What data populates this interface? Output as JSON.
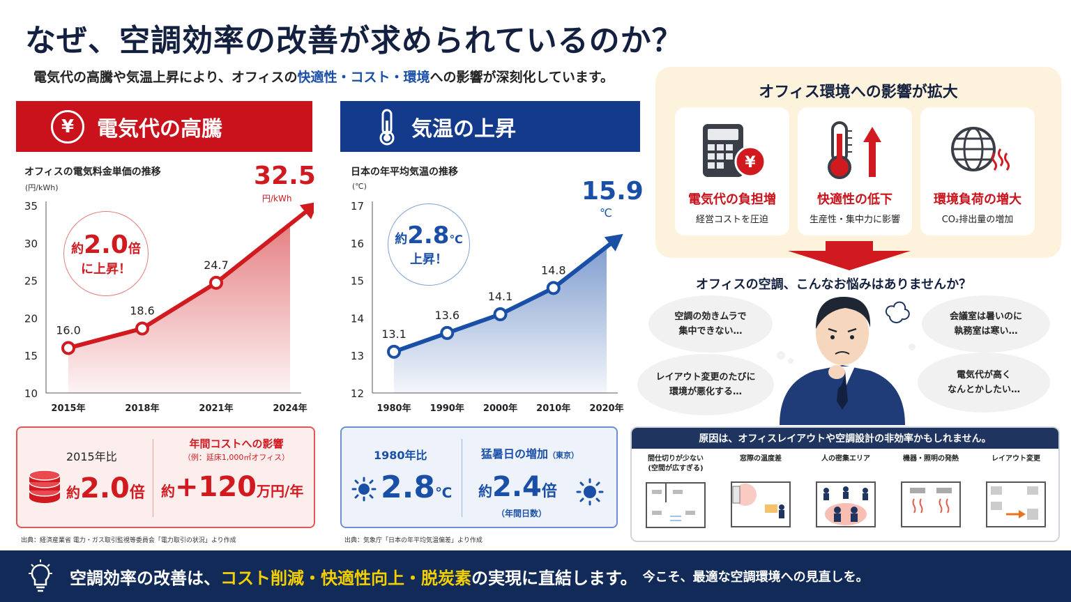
{
  "title": "なぜ、空調効率の改善が求められているのか？",
  "subtitle": {
    "pre": "電気代の高騰や気温上昇により、オフィスの",
    "highlight": "快適性・コスト・環境",
    "post": "への影響が深刻化しています。"
  },
  "left_panel": {
    "header": "電気代の高騰",
    "header_icon": "yen-icon",
    "chart_title": "オフィスの電気料金単価の推移",
    "unit": "(円/kWh)",
    "final_value": "32.5",
    "final_unit": "円/kWh",
    "badge_line1_pre": "約",
    "badge_value": "2.0",
    "badge_line1_post": "倍",
    "badge_line2": "に上昇！",
    "stat_left_label": "2015年比",
    "stat_left_pre": "約",
    "stat_left_value": "2.0",
    "stat_left_suffix": "倍",
    "stat_right_title": "年間コストへの影響",
    "stat_right_note": "（例：延床1,000㎡オフィス）",
    "stat_right_pre": "約",
    "stat_right_value": "+120",
    "stat_right_suffix": "万円/年",
    "source": "出典：経済産業省 電力・ガス取引監視等委員会「電力取引の状況」より作成",
    "accent": "#c9121b"
  },
  "mid_panel": {
    "header": "気温の上昇",
    "header_icon": "thermometer-icon",
    "chart_title": "日本の年平均気温の推移",
    "unit": "(℃)",
    "final_value": "15.9",
    "final_unit": "℃",
    "badge_line1_pre": "約",
    "badge_value": "2.8",
    "badge_line1_post": "℃",
    "badge_line2": "上昇！",
    "stat_left_label": "1980年比",
    "stat_left_value": "2.8",
    "stat_left_suffix": "℃",
    "stat_right_title": "猛暑日の増加",
    "stat_right_title_note": "（東京）",
    "stat_right_pre": "約",
    "stat_right_value": "2.4",
    "stat_right_suffix": "倍",
    "stat_right_note": "（年間日数）",
    "source": "出典：気象庁「日本の年平均気温偏差」より作成",
    "accent": "#1a4fa8"
  },
  "chart_data": [
    {
      "type": "line",
      "title": "オフィスの電気料金単価の推移",
      "ylabel": "(円/kWh)",
      "categories": [
        "2015年",
        "2018年",
        "2021年",
        "2024年"
      ],
      "x": [
        2015,
        2018,
        2021,
        2024
      ],
      "values": [
        16.0,
        18.6,
        24.7,
        32.5
      ],
      "value_labels": [
        "16.0",
        "18.6",
        "24.7",
        "32.5"
      ],
      "ylim": [
        10,
        35
      ],
      "yticks": [
        10,
        15,
        20,
        25,
        30,
        35
      ],
      "grid": false,
      "color": "#d11a1f"
    },
    {
      "type": "line",
      "title": "日本の年平均気温の推移",
      "ylabel": "(℃)",
      "categories": [
        "1980年",
        "1990年",
        "2000年",
        "2010年",
        "2020年"
      ],
      "x": [
        1980,
        1990,
        2000,
        2010,
        2020
      ],
      "values": [
        13.1,
        13.6,
        14.1,
        14.8,
        15.9
      ],
      "value_labels": [
        "13.1",
        "13.6",
        "14.1",
        "14.8",
        "15.9"
      ],
      "ylim": [
        12,
        17
      ],
      "yticks": [
        12,
        13,
        14,
        15,
        16,
        17
      ],
      "grid": false,
      "color": "#1a4fa8"
    }
  ],
  "impact": {
    "title": "オフィス環境への影響が拡大",
    "cards": [
      {
        "icon": "calculator-yen-icon",
        "title": "電気代の負担増",
        "sub": "経営コストを圧迫"
      },
      {
        "icon": "thermometer-up-icon",
        "title": "快適性の低下",
        "sub": "生産性・集中力に影響"
      },
      {
        "icon": "globe-heat-icon",
        "title": "環境負荷の増大",
        "sub": "CO₂排出量の増加"
      }
    ]
  },
  "worries": {
    "question": "オフィスの空調、こんなお悩みはありませんか？",
    "bubbles": [
      {
        "line1": "空調の効きムラで",
        "line2": "集中できない…"
      },
      {
        "line1": "レイアウト変更のたびに",
        "line2": "環境が悪化する…"
      },
      {
        "line1": "会議室は暑いのに",
        "line2": "執務室は寒い…"
      },
      {
        "line1": "電気代が高く",
        "line2": "なんとかしたい…"
      }
    ]
  },
  "causes": {
    "header": "原因は、オフィスレイアウトや空調設計の非効率かもしれません。",
    "items": [
      {
        "label1": "間仕切りが少ない",
        "label2": "(空間が広すぎる)"
      },
      {
        "label1": "窓際の温度差",
        "label2": ""
      },
      {
        "label1": "人の密集エリア",
        "label2": ""
      },
      {
        "label1": "機器・照明の発熱",
        "label2": ""
      },
      {
        "label1": "レイアウト変更",
        "label2": ""
      }
    ]
  },
  "footer": {
    "pre": "空調効率の改善は、",
    "highlight": "コスト削減・快適性向上・脱炭素",
    "post": "の実現に直結します。",
    "small": "今こそ、最適な空調環境への見直しを。",
    "icon": "lightbulb-icon"
  }
}
